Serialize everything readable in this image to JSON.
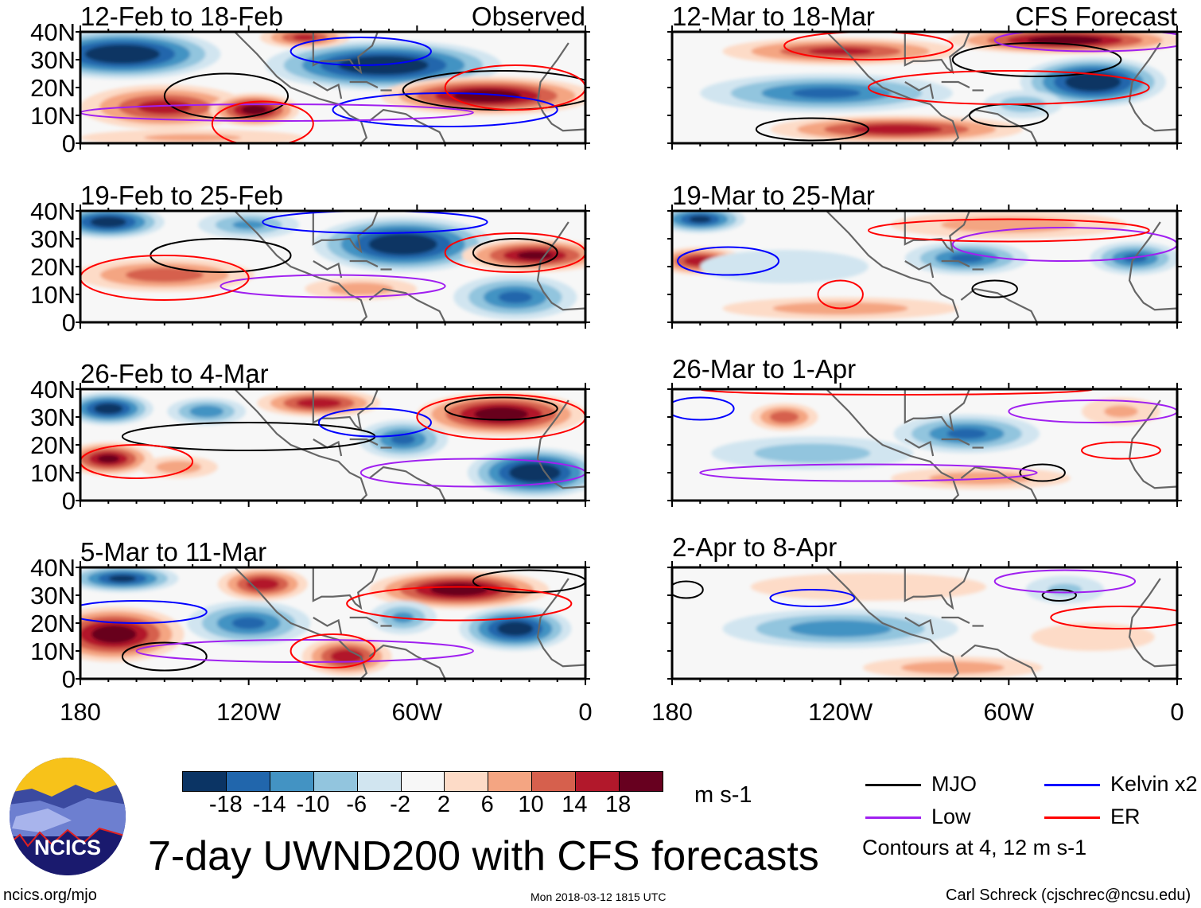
{
  "figure_title": "7-day UWND200 with CFS forecasts",
  "labels": {
    "observed": "Observed",
    "forecast": "CFS Forecast"
  },
  "y_ticks": [
    "40N",
    "30N",
    "20N",
    "10N",
    "0"
  ],
  "x_ticks": [
    "180",
    "120W",
    "60W",
    "0"
  ],
  "units": "m s-1",
  "colorbar": {
    "colors": [
      "#0b3464",
      "#2166ac",
      "#4393c3",
      "#92c5de",
      "#d1e5f0",
      "#f7f7f7",
      "#fddbc7",
      "#f4a582",
      "#d6604d",
      "#b2182b",
      "#67001f"
    ],
    "tick_labels": [
      "-18",
      "-14",
      "-10",
      "-6",
      "-2",
      "2",
      "6",
      "10",
      "14",
      "18"
    ],
    "levels": [
      -18,
      -14,
      -10,
      -6,
      -2,
      2,
      6,
      10,
      14,
      18
    ]
  },
  "legend": {
    "items": [
      {
        "label": "MJO",
        "color": "#000000"
      },
      {
        "label": "Kelvin x2",
        "color": "#0000ff"
      },
      {
        "label": "Low",
        "color": "#a020f0"
      },
      {
        "label": "ER",
        "color": "#ff0000"
      }
    ],
    "note": "Contours at 4, 12 m s-1"
  },
  "logo": {
    "text": "NCICS"
  },
  "footer": {
    "left": "ncics.org/mjo",
    "center": "Mon 2018-03-12 1815 UTC",
    "right": "Carl Schreck (cjschrec@ncsu.edu)"
  },
  "chart_data": {
    "type": "heatmap",
    "variable": "200-hPa zonal wind anomaly (m s-1)",
    "lon_range": [
      -180,
      0
    ],
    "lat_range": [
      0,
      40
    ],
    "panels": [
      {
        "title": "12-Feb to 18-Feb",
        "kind": "Observed",
        "centers": [
          [
            -165,
            32,
            35,
            9,
            -22
          ],
          [
            -72,
            28,
            42,
            9,
            -22
          ],
          [
            -150,
            13,
            30,
            8,
            15
          ],
          [
            -118,
            12,
            16,
            6,
            19
          ],
          [
            -35,
            17,
            38,
            7,
            20
          ],
          [
            -100,
            38,
            16,
            4,
            14
          ],
          [
            -140,
            2,
            40,
            3,
            6
          ]
        ],
        "contours": [
          [
            -128,
            17,
            22,
            8,
            "mjo"
          ],
          [
            -30,
            19,
            35,
            7,
            "mjo"
          ],
          [
            -80,
            33,
            25,
            5,
            "kelvin"
          ],
          [
            -50,
            12,
            40,
            6,
            "kelvin"
          ],
          [
            -110,
            11,
            70,
            3,
            "low"
          ],
          [
            -115,
            7,
            18,
            8,
            "er"
          ],
          [
            -25,
            20,
            25,
            8,
            "er"
          ]
        ]
      },
      {
        "title": "19-Feb to 25-Feb",
        "kind": "Observed",
        "centers": [
          [
            -170,
            36,
            20,
            6,
            -20
          ],
          [
            -65,
            28,
            32,
            10,
            -22
          ],
          [
            -150,
            17,
            32,
            6,
            12
          ],
          [
            -25,
            9,
            22,
            8,
            -14
          ],
          [
            -18,
            24,
            26,
            6,
            18
          ],
          [
            -120,
            35,
            18,
            5,
            -10
          ],
          [
            -80,
            12,
            20,
            4,
            8
          ]
        ],
        "contours": [
          [
            -130,
            24,
            25,
            6,
            "mjo"
          ],
          [
            -25,
            25,
            15,
            5,
            "mjo"
          ],
          [
            -75,
            36,
            40,
            4,
            "kelvin"
          ],
          [
            -90,
            13,
            40,
            4,
            "low"
          ],
          [
            -150,
            16,
            30,
            8,
            "er"
          ],
          [
            -25,
            25,
            25,
            7,
            "er"
          ]
        ]
      },
      {
        "title": "26-Feb to 4-Mar",
        "kind": "Observed",
        "centers": [
          [
            -170,
            33,
            16,
            6,
            -20
          ],
          [
            -135,
            32,
            14,
            5,
            -12
          ],
          [
            -95,
            35,
            22,
            5,
            16
          ],
          [
            -65,
            22,
            16,
            7,
            -14
          ],
          [
            -30,
            31,
            30,
            8,
            20
          ],
          [
            -18,
            10,
            24,
            9,
            -22
          ],
          [
            -170,
            15,
            16,
            6,
            18
          ],
          [
            -145,
            12,
            14,
            4,
            8
          ]
        ],
        "contours": [
          [
            -120,
            23,
            45,
            5,
            "mjo"
          ],
          [
            -30,
            33,
            20,
            4,
            "mjo"
          ],
          [
            -75,
            28,
            20,
            5,
            "kelvin"
          ],
          [
            -40,
            10,
            40,
            5,
            "low"
          ],
          [
            -160,
            14,
            20,
            6,
            "er"
          ],
          [
            -30,
            30,
            30,
            8,
            "er"
          ]
        ]
      },
      {
        "title": "5-Mar to 11-Mar",
        "kind": "Observed",
        "centers": [
          [
            -165,
            36,
            20,
            5,
            -18
          ],
          [
            -168,
            16,
            25,
            10,
            20
          ],
          [
            -115,
            34,
            16,
            6,
            16
          ],
          [
            -120,
            20,
            22,
            8,
            -14
          ],
          [
            -85,
            8,
            16,
            7,
            16
          ],
          [
            -45,
            32,
            32,
            7,
            20
          ],
          [
            -25,
            18,
            20,
            8,
            -20
          ],
          [
            -65,
            22,
            12,
            6,
            -10
          ]
        ],
        "contours": [
          [
            -150,
            8,
            15,
            5,
            "mjo"
          ],
          [
            -20,
            35,
            20,
            4,
            "mjo"
          ],
          [
            -160,
            24,
            25,
            4,
            "kelvin"
          ],
          [
            -100,
            10,
            60,
            4,
            "low"
          ],
          [
            -45,
            27,
            40,
            6,
            "er"
          ],
          [
            -90,
            10,
            15,
            6,
            "er"
          ]
        ]
      },
      {
        "title": "12-Mar to 18-Mar",
        "kind": "CFS Forecast",
        "centers": [
          [
            -120,
            33,
            42,
            5,
            14
          ],
          [
            -125,
            18,
            45,
            7,
            -14
          ],
          [
            -30,
            22,
            26,
            9,
            -22
          ],
          [
            -40,
            37,
            42,
            5,
            20
          ],
          [
            -100,
            5,
            45,
            5,
            16
          ],
          [
            -55,
            14,
            14,
            5,
            -8
          ]
        ],
        "contours": [
          [
            -130,
            5,
            20,
            4,
            "mjo"
          ],
          [
            -60,
            10,
            14,
            4,
            "mjo"
          ],
          [
            -50,
            30,
            30,
            6,
            "mjo"
          ],
          [
            -110,
            35,
            30,
            5,
            "er"
          ],
          [
            -60,
            20,
            50,
            6,
            "er"
          ],
          [
            -30,
            37,
            35,
            4,
            "low"
          ]
        ]
      },
      {
        "title": "19-Mar to 25-Mar",
        "kind": "",
        "centers": [
          [
            -170,
            37,
            16,
            5,
            -18
          ],
          [
            -170,
            22,
            16,
            5,
            16
          ],
          [
            -75,
            23,
            22,
            6,
            -14
          ],
          [
            -15,
            23,
            16,
            6,
            -14
          ],
          [
            -120,
            5,
            42,
            4,
            8
          ],
          [
            -60,
            35,
            42,
            5,
            8
          ],
          [
            -140,
            20,
            30,
            6,
            -5
          ]
        ],
        "contours": [
          [
            -65,
            12,
            8,
            3,
            "mjo"
          ],
          [
            -160,
            22,
            18,
            5,
            "kelvin"
          ],
          [
            -40,
            28,
            40,
            6,
            "low"
          ],
          [
            -120,
            10,
            8,
            5,
            "er"
          ],
          [
            -60,
            33,
            50,
            4,
            "er"
          ]
        ]
      },
      {
        "title": "26-Mar to 1-Apr",
        "kind": "",
        "centers": [
          [
            -140,
            30,
            12,
            5,
            12
          ],
          [
            -75,
            24,
            26,
            7,
            -14
          ],
          [
            -130,
            17,
            36,
            6,
            -8
          ],
          [
            -70,
            8,
            32,
            4,
            8
          ],
          [
            -20,
            32,
            14,
            5,
            6
          ]
        ],
        "contours": [
          [
            -48,
            10,
            8,
            3,
            "mjo"
          ],
          [
            -170,
            33,
            12,
            4,
            "kelvin"
          ],
          [
            -30,
            32,
            30,
            4,
            "low"
          ],
          [
            -110,
            10,
            60,
            3,
            "low"
          ],
          [
            -20,
            18,
            14,
            3,
            "er"
          ],
          [
            -100,
            40,
            70,
            2,
            "er"
          ]
        ]
      },
      {
        "title": "2-Apr to 8-Apr",
        "kind": "",
        "centers": [
          [
            -120,
            18,
            42,
            7,
            -12
          ],
          [
            -110,
            33,
            42,
            5,
            5
          ],
          [
            -80,
            4,
            32,
            4,
            8
          ],
          [
            -40,
            32,
            14,
            5,
            -6
          ],
          [
            -30,
            15,
            22,
            5,
            5
          ]
        ],
        "contours": [
          [
            -175,
            32,
            6,
            3,
            "mjo"
          ],
          [
            -42,
            30,
            6,
            2,
            "mjo"
          ],
          [
            -130,
            29,
            15,
            3,
            "kelvin"
          ],
          [
            -40,
            35,
            25,
            4,
            "low"
          ],
          [
            -20,
            22,
            25,
            4,
            "er"
          ]
        ]
      }
    ]
  }
}
